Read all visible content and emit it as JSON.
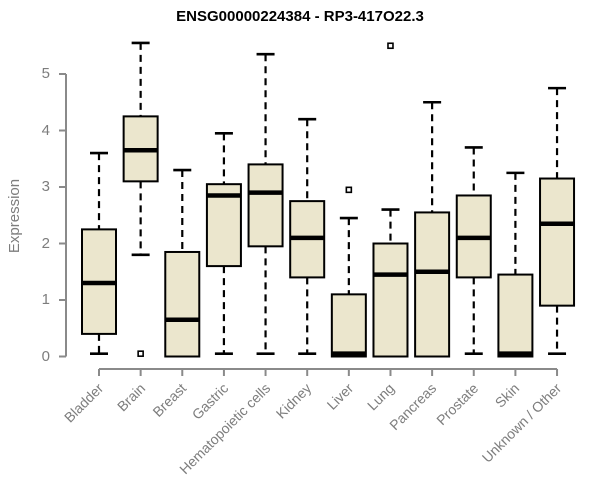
{
  "header": {
    "title": "ENSG00000224384 - RP3-417O22.3"
  },
  "chart_data": {
    "type": "box",
    "title": "ENSG00000224384 - RP3-417O22.3",
    "xlabel": "",
    "ylabel": "Expression",
    "ylim": [
      0,
      5
    ],
    "yticks": [
      0,
      1,
      2,
      3,
      4,
      5
    ],
    "grid": false,
    "legend": false,
    "categories": [
      "Bladder",
      "Brain",
      "Breast",
      "Gastric",
      "Hematopoietic cells",
      "Kidney",
      "Liver",
      "Lung",
      "Pancreas",
      "Prostate",
      "Skin",
      "Unknown / Other"
    ],
    "series": [
      {
        "name": "Bladder",
        "whisker_low": 0.05,
        "q1": 0.4,
        "median": 1.3,
        "q3": 2.25,
        "whisker_high": 3.6,
        "outliers": []
      },
      {
        "name": "Brain",
        "whisker_low": 1.8,
        "q1": 3.1,
        "median": 3.65,
        "q3": 4.25,
        "whisker_high": 5.55,
        "outliers": [
          0.05
        ]
      },
      {
        "name": "Breast",
        "whisker_low": 0.0,
        "q1": 0.0,
        "median": 0.65,
        "q3": 1.85,
        "whisker_high": 3.3,
        "outliers": []
      },
      {
        "name": "Gastric",
        "whisker_low": 0.05,
        "q1": 1.6,
        "median": 2.85,
        "q3": 3.05,
        "whisker_high": 3.95,
        "outliers": []
      },
      {
        "name": "Hematopoietic cells",
        "whisker_low": 0.05,
        "q1": 1.95,
        "median": 2.9,
        "q3": 3.4,
        "whisker_high": 5.35,
        "outliers": []
      },
      {
        "name": "Kidney",
        "whisker_low": 0.05,
        "q1": 1.4,
        "median": 2.1,
        "q3": 2.75,
        "whisker_high": 4.2,
        "outliers": []
      },
      {
        "name": "Liver",
        "whisker_low": 0.0,
        "q1": 0.0,
        "median": 0.05,
        "q3": 1.1,
        "whisker_high": 2.45,
        "outliers": [
          2.95
        ]
      },
      {
        "name": "Lung",
        "whisker_low": 0.0,
        "q1": 0.0,
        "median": 1.45,
        "q3": 2.0,
        "whisker_high": 2.6,
        "outliers": [
          5.5
        ]
      },
      {
        "name": "Pancreas",
        "whisker_low": 0.0,
        "q1": 0.0,
        "median": 1.5,
        "q3": 2.55,
        "whisker_high": 4.5,
        "outliers": []
      },
      {
        "name": "Prostate",
        "whisker_low": 0.05,
        "q1": 1.4,
        "median": 2.1,
        "q3": 2.85,
        "whisker_high": 3.7,
        "outliers": []
      },
      {
        "name": "Skin",
        "whisker_low": 0.0,
        "q1": 0.0,
        "median": 0.05,
        "q3": 1.45,
        "whisker_high": 3.25,
        "outliers": []
      },
      {
        "name": "Unknown / Other",
        "whisker_low": 0.05,
        "q1": 0.9,
        "median": 2.35,
        "q3": 3.15,
        "whisker_high": 4.75,
        "outliers": []
      }
    ],
    "colors": {
      "box_fill": "#ebe6cd",
      "box_border": "#000000",
      "median": "#000000",
      "whisker": "#000000",
      "axis": "#8a8a8a",
      "tick_label": "#7d7d7d",
      "title": "#000000",
      "background": "#ffffff"
    }
  }
}
